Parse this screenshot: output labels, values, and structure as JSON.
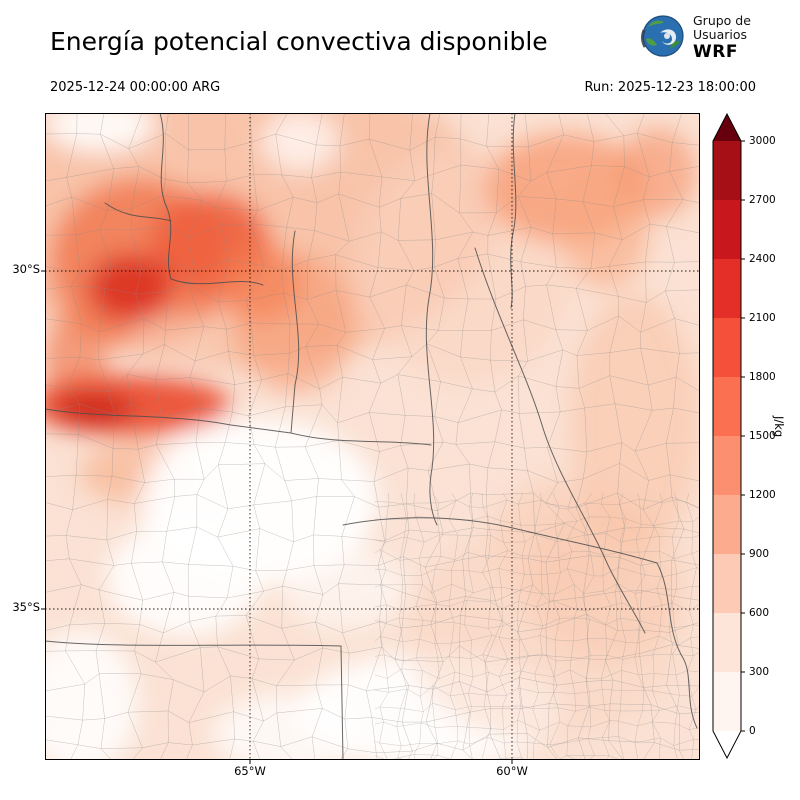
{
  "title": "Energía potencial convectiva disponible",
  "logo": {
    "org_line1": "Grupo de",
    "org_line2": "Usuarios",
    "org_line3": "WRF"
  },
  "times": {
    "valid": "2025-12-24 00:00:00 ARG",
    "run": "Run: 2025-12-23 18:00:00"
  },
  "map_axes": {
    "lat_labels": [
      "30°S",
      "35°S"
    ],
    "lon_labels": [
      "65°W",
      "60°W"
    ]
  },
  "colorbar": {
    "unit": "J/kg",
    "tick_labels": [
      "3000",
      "2700",
      "2400",
      "2100",
      "1800",
      "1500",
      "1200",
      "900",
      "600",
      "300",
      "0"
    ],
    "colors_top_to_bottom": [
      "#a50f15",
      "#c9181d",
      "#e32f27",
      "#f4503a",
      "#fb7050",
      "#fc8f6f",
      "#fcab8f",
      "#fdcab5",
      "#fee5d9",
      "#fff5f0"
    ],
    "over_color": "#67000d",
    "under_color": "#ffffff"
  }
}
